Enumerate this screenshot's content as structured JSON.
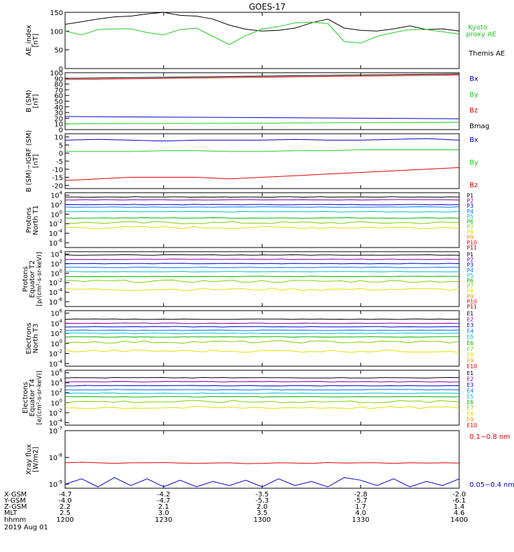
{
  "title": "GOES-17",
  "colors": {
    "black": "#000000",
    "red": "#dd0000",
    "green": "#22cc22",
    "blue": "#0000cc",
    "p": [
      "#000000",
      "#7a00a8",
      "#0000cc",
      "#0070ff",
      "#00c0c0",
      "#00b000",
      "#7fd000",
      "#e0e000",
      "#f09000",
      "#e00000",
      "#a00000"
    ],
    "e": [
      "#000000",
      "#7a00a8",
      "#0000cc",
      "#0070ff",
      "#00c0c0",
      "#00b000",
      "#7fd000",
      "#e0e000",
      "#f09000",
      "#e00000",
      "#a00000"
    ]
  },
  "chart_data": [
    {
      "id": "ae",
      "type": "line",
      "ylabel": [
        "AE_index",
        "[nT]"
      ],
      "ylim": [
        0,
        150
      ],
      "yticks": [
        "0",
        "50",
        "100",
        "150"
      ],
      "legend": [
        {
          "label": "Kyoto",
          "color": "green"
        },
        {
          "label": "proxy AE",
          "color": "green"
        },
        {
          "label": "Themis AE",
          "color": "black"
        }
      ],
      "x": [
        1200,
        1205,
        1210,
        1215,
        1220,
        1225,
        1230,
        1235,
        1240,
        1245,
        1250,
        1255,
        1300,
        1305,
        1310,
        1315,
        1320,
        1325,
        1330,
        1335,
        1340,
        1345,
        1350,
        1355,
        1400
      ],
      "series": [
        {
          "name": "Themis AE",
          "color": "black",
          "values": [
            118,
            125,
            132,
            138,
            140,
            146,
            150,
            142,
            140,
            132,
            116,
            105,
            100,
            102,
            108,
            122,
            132,
            108,
            102,
            100,
            106,
            114,
            104,
            106,
            100
          ]
        },
        {
          "name": "Kyoto proxy AE",
          "color": "green",
          "values": [
            100,
            90,
            104,
            106,
            106,
            96,
            90,
            104,
            108,
            86,
            64,
            88,
            106,
            112,
            122,
            124,
            120,
            72,
            68,
            86,
            96,
            104,
            104,
            98,
            92
          ]
        }
      ]
    },
    {
      "id": "bsm",
      "type": "line",
      "ylabel": [
        "B (SM)",
        "[nT]"
      ],
      "ylim": [
        0,
        100
      ],
      "yticks": [
        "0",
        "10",
        "20",
        "30",
        "40",
        "50",
        "60",
        "70",
        "80",
        "90",
        "100"
      ],
      "legend": [
        {
          "label": "Bx",
          "color": "blue"
        },
        {
          "label": "By",
          "color": "green"
        },
        {
          "label": "Bz",
          "color": "red"
        },
        {
          "label": "Bmag",
          "color": "black"
        }
      ],
      "x": [
        1200,
        1400
      ],
      "series": [
        {
          "name": "Bx",
          "color": "blue",
          "values": [
            23,
            19
          ]
        },
        {
          "name": "By",
          "color": "green",
          "values": [
            10,
            13
          ]
        },
        {
          "name": "Bz",
          "color": "red",
          "values": [
            88,
            96
          ]
        },
        {
          "name": "Bmag",
          "color": "black",
          "values": [
            90,
            98
          ]
        }
      ]
    },
    {
      "id": "bigrf",
      "type": "line",
      "ylabel": [
        "B (SM)−IGRF (SM)",
        "[nT]"
      ],
      "ylim": [
        -22,
        12
      ],
      "yticks": [
        "-20",
        "-15",
        "-10",
        "-5",
        "0",
        "5",
        "10"
      ],
      "legend": [
        {
          "label": "Bx",
          "color": "blue"
        },
        {
          "label": "By",
          "color": "green"
        },
        {
          "label": "Bz",
          "color": "red"
        }
      ],
      "x": [
        1200,
        1210,
        1220,
        1230,
        1240,
        1250,
        1300,
        1310,
        1320,
        1330,
        1340,
        1350,
        1400
      ],
      "series": [
        {
          "name": "Bx",
          "color": "blue",
          "values": [
            8,
            8.5,
            8,
            7.5,
            8,
            8,
            8,
            8.5,
            8,
            8,
            8.5,
            9,
            8
          ]
        },
        {
          "name": "By",
          "color": "green",
          "values": [
            1,
            1,
            1,
            1.5,
            1.5,
            1,
            1,
            1.5,
            1.5,
            2,
            2,
            2,
            2
          ]
        },
        {
          "name": "Bz",
          "color": "red",
          "values": [
            -17,
            -16,
            -15,
            -15,
            -15,
            -16,
            -15,
            -14,
            -13,
            -12,
            -11,
            -10,
            -9
          ]
        }
      ]
    },
    {
      "id": "pnorth",
      "type": "line",
      "log": true,
      "ylabel": [
        "Protons",
        "North T1"
      ],
      "ytick_exp": [
        4,
        2,
        0,
        -2,
        -4,
        -6
      ],
      "ylog_range": [
        -7,
        4.5
      ],
      "channels": [
        "P1",
        "P2",
        "P3",
        "P4",
        "P5",
        "P6",
        "P7",
        "P8",
        "P9",
        "P10",
        "P11"
      ],
      "levels": [
        3.6,
        3.0,
        2.0,
        1.5,
        0.5,
        -0.8,
        -1.8,
        -2.8,
        null,
        null,
        null
      ]
    },
    {
      "id": "pequator",
      "type": "line",
      "log": true,
      "ylabel": [
        "Protons",
        "Equator T2"
      ],
      "units": "[p/(cm²-s-sr-keV)]",
      "ytick_exp": [
        4,
        2,
        0,
        -2,
        -4,
        -6
      ],
      "ylog_range": [
        -7,
        4.5
      ],
      "channels": [
        "P1",
        "P2",
        "P3",
        "P4",
        "P5",
        "P6",
        "P7",
        "P8",
        "P9",
        "P10",
        "P11"
      ],
      "levels": [
        3.8,
        2.9,
        2.0,
        1.2,
        0.3,
        -0.7,
        -1.7,
        -3.4,
        null,
        null,
        null
      ]
    },
    {
      "id": "enorth",
      "type": "line",
      "log": true,
      "ylabel": [
        "Electrons",
        "North T3"
      ],
      "ytick_exp": [
        6,
        4,
        2,
        0,
        -2,
        -4
      ],
      "ylog_range": [
        -4.5,
        6.5
      ],
      "channels": [
        "E1",
        "E2",
        "E3",
        "E4",
        "E5",
        "E6",
        "E7",
        "E8",
        "E9",
        "E10"
      ],
      "levels": [
        4.8,
        4.0,
        3.3,
        2.6,
        2.0,
        1.3,
        0.3,
        -1.5,
        null,
        null
      ]
    },
    {
      "id": "eequator",
      "type": "line",
      "log": true,
      "ylabel": [
        "Electrons",
        "Equator T4"
      ],
      "units": "[e/(cm²-s-sr-keV)]",
      "ytick_exp": [
        6,
        4,
        2,
        0,
        -2,
        -4
      ],
      "ylog_range": [
        -4.5,
        6.5
      ],
      "channels": [
        "E1",
        "E2",
        "E3",
        "E4",
        "E5",
        "E6",
        "E7",
        "E8",
        "E9",
        "E10"
      ],
      "levels": [
        5.0,
        4.2,
        3.4,
        2.6,
        1.9,
        1.2,
        0.2,
        -1.0,
        null,
        null
      ]
    },
    {
      "id": "xray",
      "type": "line",
      "log": true,
      "ylabel": [
        "Xray flux",
        "[W/m2]"
      ],
      "ytick_exp": [
        -7,
        -8,
        -9
      ],
      "ylog_range": [
        -9.15,
        -7
      ],
      "legend": [
        {
          "label": "0.1−0.8 nm",
          "color": "red"
        },
        {
          "label": "0.05−0.4 nm",
          "color": "blue"
        }
      ],
      "x": [
        1200,
        1205,
        1210,
        1215,
        1220,
        1225,
        1230,
        1235,
        1240,
        1245,
        1250,
        1255,
        1300,
        1305,
        1310,
        1315,
        1320,
        1325,
        1330,
        1335,
        1340,
        1345,
        1350,
        1355,
        1400
      ],
      "series": [
        {
          "name": "0.1−0.8 nm",
          "color": "red",
          "values": [
            -8.2,
            -8.18,
            -8.2,
            -8.22,
            -8.2,
            -8.2,
            -8.19,
            -8.21,
            -8.22,
            -8.21,
            -8.2,
            -8.23,
            -8.22,
            -8.2,
            -8.21,
            -8.22,
            -8.19,
            -8.21,
            -8.2,
            -8.2,
            -8.22,
            -8.2,
            -8.21,
            -8.2,
            -8.21
          ]
        },
        {
          "name": "0.05−0.4 nm",
          "color": "blue",
          "values": [
            -9.0,
            -8.8,
            -9.1,
            -8.75,
            -9.05,
            -8.8,
            -9.1,
            -8.85,
            -9.1,
            -8.9,
            -9.05,
            -8.85,
            -9.1,
            -8.8,
            -9.05,
            -8.9,
            -9.1,
            -8.75,
            -8.85,
            -9.05,
            -8.8,
            -9.1,
            -8.9,
            -9.05,
            -8.8
          ]
        }
      ]
    }
  ],
  "xaxis": {
    "labels": [
      "X-GSM",
      "Y-GSM",
      "Z-GSM",
      "MLT",
      "hhmm",
      "2019 Aug 01"
    ],
    "columns": [
      [
        "-4.7",
        "-4.0",
        "2.2",
        "2.5",
        "1200"
      ],
      [
        "-4.2",
        "-4.7",
        "2.1",
        "3.0",
        "1230"
      ],
      [
        "-3.5",
        "-5.3",
        "2.0",
        "3.5",
        "1300"
      ],
      [
        "-2.8",
        "-5.7",
        "1.7",
        "4.0",
        "1330"
      ],
      [
        "-2.0",
        "-6.1",
        "1.4",
        "4.6",
        "1400"
      ]
    ]
  }
}
